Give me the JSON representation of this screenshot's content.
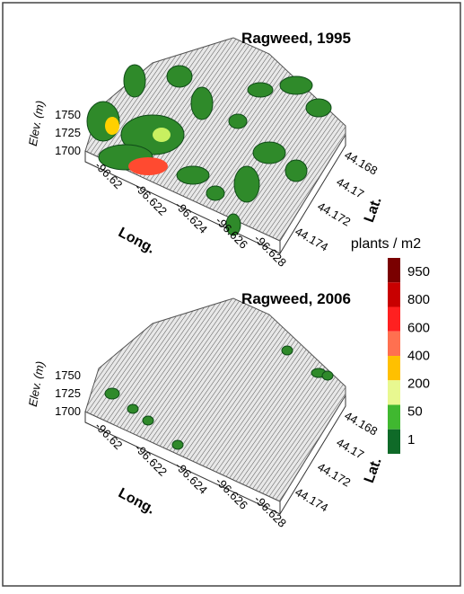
{
  "panels": [
    {
      "title": "Ragweed, 1995",
      "elev_label": "Elev. (m)",
      "elev_ticks": [
        "1750",
        "1725",
        "1700"
      ],
      "long_label": "Long.",
      "long_ticks": [
        "-96.62",
        "-96.622",
        "-96.624",
        "-96.626",
        "-96.628"
      ],
      "lat_label": "Lat.",
      "lat_ticks": [
        "44.168",
        "44.17",
        "44.172",
        "44.174"
      ]
    },
    {
      "title": "Ragweed, 2006",
      "elev_label": "Elev. (m)",
      "elev_ticks": [
        "1750",
        "1725",
        "1700"
      ],
      "long_label": "Long.",
      "long_ticks": [
        "-96.62",
        "-96.622",
        "-96.624",
        "-96.626",
        "-96.628"
      ],
      "lat_label": "Lat.",
      "lat_ticks": [
        "44.168",
        "44.17",
        "44.172",
        "44.174"
      ]
    }
  ],
  "colorbar": {
    "title": "plants / m2",
    "labels": [
      "950",
      "800",
      "600",
      "400",
      "200",
      "50",
      "1"
    ],
    "colors": [
      "#7a0000",
      "#c80000",
      "#ff2020",
      "#ff7050",
      "#ffc000",
      "#e8f890",
      "#40b830",
      "#0f6a28"
    ]
  }
}
